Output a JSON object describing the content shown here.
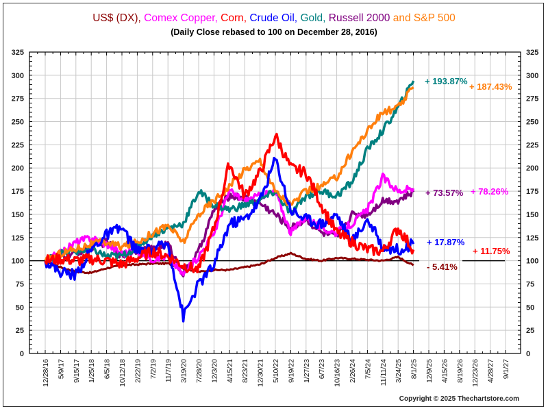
{
  "chart_data": {
    "type": "line",
    "title_parts": [
      {
        "text": "US$ (DX), ",
        "color": "#8B0000"
      },
      {
        "text": "Comex Copper, ",
        "color": "#FF00FF"
      },
      {
        "text": "Corn, ",
        "color": "#FF0000"
      },
      {
        "text": "Crude Oil, ",
        "color": "#0000FF"
      },
      {
        "text": "Gold, ",
        "color": "#008080"
      },
      {
        "text": "Russell 2000 ",
        "color": "#800080"
      },
      {
        "text": "and S&P 500",
        "color": "#FF7F0E"
      }
    ],
    "subtitle": "(Daily Close rebased to 100 on December 28, 2016)",
    "xlabel": "",
    "ylabel": "",
    "ylim": [
      0,
      325
    ],
    "yticks": [
      0,
      25,
      50,
      75,
      100,
      125,
      150,
      175,
      200,
      225,
      250,
      275,
      300,
      325
    ],
    "x_tick_labels": [
      "12/28/16",
      "5/9/17",
      "9/15/17",
      "1/25/18",
      "6/5/18",
      "10/12/18",
      "2/22/19",
      "7/2/19",
      "11/7/19",
      "3/19/20",
      "7/28/20",
      "12/3/20",
      "4/15/21",
      "8/23/21",
      "12/30/21",
      "5/10/22",
      "9/19/22",
      "1/27/23",
      "6/7/23",
      "10/16/23",
      "2/26/24",
      "7/5/24",
      "11/11/24",
      "3/24/25",
      "8/1/25",
      "12/9/25",
      "4/15/26",
      "8/19/26",
      "12/23/26",
      "4/28/27",
      "9/1/27"
    ],
    "grid": true,
    "reference_line": 100,
    "x": [
      "12/28/16",
      "5/9/17",
      "9/15/17",
      "1/25/18",
      "6/5/18",
      "10/12/18",
      "2/22/19",
      "7/2/19",
      "11/7/19",
      "3/19/20",
      "7/28/20",
      "12/3/20",
      "4/15/21",
      "8/23/21",
      "12/30/21",
      "5/10/22",
      "9/19/22",
      "1/27/23",
      "6/7/23",
      "10/16/23",
      "2/26/24",
      "7/5/24",
      "11/11/24",
      "3/24/25",
      "8/1/25"
    ],
    "series": [
      {
        "name": "S&P 500",
        "color": "#FF7F0E",
        "end_label": "+ 187.43%",
        "values": [
          100,
          108,
          113,
          118,
          120,
          115,
          120,
          130,
          138,
          120,
          150,
          165,
          180,
          198,
          208,
          175,
          160,
          175,
          180,
          190,
          218,
          240,
          260,
          265,
          287
        ]
      },
      {
        "name": "Gold",
        "color": "#008080",
        "end_label": "+ 193.87%",
        "values": [
          100,
          108,
          110,
          112,
          105,
          105,
          115,
          128,
          135,
          140,
          175,
          160,
          155,
          160,
          165,
          175,
          150,
          170,
          175,
          170,
          185,
          220,
          240,
          265,
          294
        ]
      },
      {
        "name": "Russell 2000",
        "color": "#800080",
        "end_label": "+ 73.57%",
        "values": [
          100,
          105,
          108,
          115,
          120,
          105,
          112,
          112,
          118,
          85,
          110,
          155,
          170,
          168,
          162,
          150,
          135,
          145,
          130,
          125,
          150,
          150,
          165,
          165,
          174
        ]
      },
      {
        "name": "Comex Copper",
        "color": "#FF00FF",
        "end_label": "+ 78.26%",
        "values": [
          100,
          108,
          120,
          125,
          118,
          108,
          110,
          102,
          105,
          85,
          105,
          130,
          175,
          165,
          170,
          175,
          130,
          148,
          135,
          130,
          140,
          155,
          190,
          175,
          178
        ]
      },
      {
        "name": "Corn",
        "color": "#FF0000",
        "end_label": "+ 11.75%",
        "values": [
          100,
          102,
          100,
          102,
          100,
          96,
          103,
          110,
          105,
          95,
          90,
          135,
          205,
          170,
          195,
          235,
          200,
          195,
          160,
          130,
          120,
          112,
          110,
          135,
          112
        ]
      },
      {
        "name": "Crude Oil",
        "color": "#0000FF",
        "end_label": "+ 17.87%",
        "values": [
          100,
          88,
          85,
          112,
          128,
          135,
          110,
          112,
          118,
          40,
          75,
          95,
          140,
          145,
          165,
          210,
          155,
          145,
          140,
          150,
          120,
          145,
          115,
          112,
          118
        ]
      },
      {
        "name": "US$ (DX)",
        "color": "#8B0000",
        "end_label": "- 5.41%",
        "values": [
          100,
          93,
          88,
          87,
          92,
          95,
          96,
          97,
          97,
          92,
          88,
          90,
          90,
          93,
          96,
          103,
          108,
          102,
          100,
          103,
          102,
          101,
          100,
          104,
          95
        ]
      }
    ]
  },
  "copyright": "Copyright © 2025 Thechartstore.com"
}
